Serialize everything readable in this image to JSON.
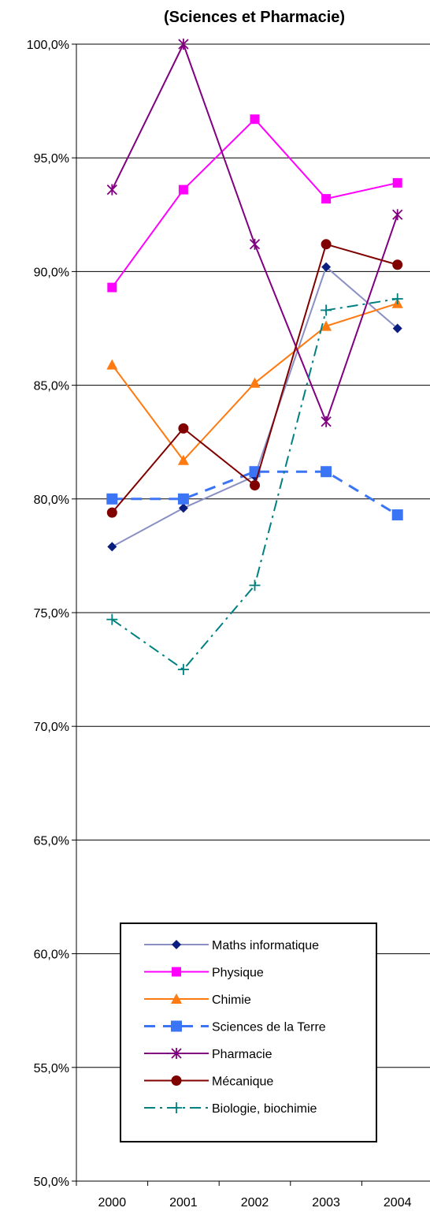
{
  "chart_data": {
    "type": "line",
    "title": "(Sciences et Pharmacie)",
    "xlabel": "",
    "ylabel": "",
    "categories": [
      "2000",
      "2001",
      "2002",
      "2003",
      "2004"
    ],
    "ylim": [
      0.5,
      1.0
    ],
    "y_ticks": [
      {
        "value": 0.5,
        "label": "50,0%"
      },
      {
        "value": 0.55,
        "label": "55,0%"
      },
      {
        "value": 0.6,
        "label": "60,0%"
      },
      {
        "value": 0.65,
        "label": "65,0%"
      },
      {
        "value": 0.7,
        "label": "70,0%"
      },
      {
        "value": 0.75,
        "label": "75,0%"
      },
      {
        "value": 0.8,
        "label": "80,0%"
      },
      {
        "value": 0.85,
        "label": "85,0%"
      },
      {
        "value": 0.9,
        "label": "90,0%"
      },
      {
        "value": 0.95,
        "label": "95,0%"
      },
      {
        "value": 1.0,
        "label": "100,0%"
      }
    ],
    "grid": true,
    "legend_position": "bottom-inside",
    "series": [
      {
        "name": "Maths informatique",
        "values": [
          0.779,
          0.796,
          0.81,
          0.902,
          0.875
        ],
        "color": "#8a8fc4",
        "marker": "diamond",
        "marker_color": "#0b1e80",
        "dash": "solid"
      },
      {
        "name": "Physique",
        "values": [
          0.893,
          0.936,
          0.967,
          0.932,
          0.939
        ],
        "color": "#ff00ff",
        "marker": "square",
        "marker_color": "#ff00ff",
        "dash": "solid"
      },
      {
        "name": "Chimie",
        "values": [
          0.859,
          0.817,
          0.851,
          0.876,
          0.886
        ],
        "color": "#ff7a10",
        "marker": "triangle",
        "marker_color": "#ff7a10",
        "dash": "solid"
      },
      {
        "name": "Sciences de la Terre",
        "values": [
          0.8,
          0.8,
          0.812,
          0.812,
          0.793
        ],
        "color": "#3b74f5",
        "marker": "square-big",
        "marker_color": "#3b74f5",
        "dash": "dashed"
      },
      {
        "name": "Pharmacie",
        "values": [
          0.936,
          1.0,
          0.912,
          0.834,
          0.925
        ],
        "color": "#800080",
        "marker": "star",
        "marker_color": "#800080",
        "dash": "solid"
      },
      {
        "name": "Mécanique",
        "values": [
          0.794,
          0.831,
          0.806,
          0.912,
          0.903
        ],
        "color": "#800000",
        "marker": "circle",
        "marker_color": "#800000",
        "dash": "solid"
      },
      {
        "name": "Biologie, biochimie",
        "values": [
          0.747,
          0.725,
          0.762,
          0.883,
          0.888
        ],
        "color": "#008080",
        "marker": "plus",
        "marker_color": "#008080",
        "dash": "dashdot"
      }
    ]
  }
}
